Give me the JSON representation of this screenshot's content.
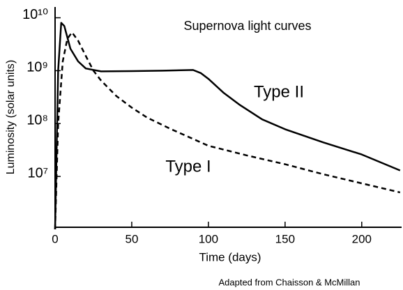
{
  "chart_data": {
    "type": "line",
    "title": "Supernova light curves",
    "x_label": "Time (days)",
    "y_label": "Luminosity (solar units)",
    "note": "Adapted from Chaisson & McMillan",
    "log_y": true,
    "xlim": [
      0,
      226
    ],
    "xticks": [
      0,
      50,
      100,
      150,
      200
    ],
    "ylim": [
      1000000,
      16000000000
    ],
    "yticks": [
      {
        "value": 10000000000,
        "label": "10¹⁰"
      },
      {
        "value": 1000000000,
        "label": "10⁹"
      },
      {
        "value": 100000000,
        "label": "10⁸"
      },
      {
        "value": 10000000,
        "label": "10⁷"
      }
    ],
    "series": [
      {
        "name": "Type II",
        "color": "#000000",
        "linestyle": "solid",
        "x": [
          0,
          2,
          4,
          6,
          10,
          15,
          20,
          30,
          50,
          70,
          90,
          95,
          100,
          110,
          120,
          135,
          150,
          175,
          200,
          225
        ],
        "values": [
          1000000,
          1000000000,
          8000000000,
          7000000000,
          2600000000,
          1500000000,
          1100000000,
          970000000,
          980000000,
          1000000000,
          1030000000,
          900000000,
          700000000,
          380000000,
          230000000,
          120000000,
          78000000,
          44000000,
          26000000,
          13000000
        ]
      },
      {
        "name": "Type I",
        "color": "#000000",
        "linestyle": "dashed",
        "x": [
          0,
          2,
          5,
          8,
          11,
          15,
          20,
          25,
          30,
          40,
          50,
          60,
          75,
          100,
          125,
          150,
          175,
          200,
          225
        ],
        "values": [
          1000000,
          100000000,
          1500000000,
          4000000000,
          5300000000,
          3700000000,
          1900000000,
          1000000000,
          650000000,
          330000000,
          200000000,
          130000000,
          80000000,
          38000000,
          25000000,
          17000000,
          11000000,
          7400000,
          5000000
        ]
      }
    ]
  }
}
